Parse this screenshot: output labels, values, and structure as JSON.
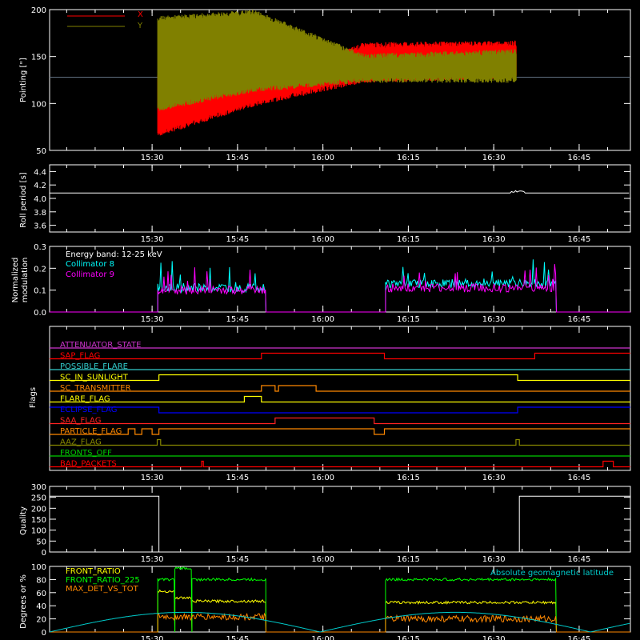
{
  "time_ticks": [
    "15:30",
    "15:45",
    "16:00",
    "16:15",
    "16:30",
    "16:45"
  ],
  "chart_data": [
    {
      "id": "pointing",
      "type": "line",
      "ylabel": "Pointing [\"]",
      "ylim": [
        50,
        200
      ],
      "yticks": [
        "50",
        "100",
        "150",
        "200"
      ],
      "series": [
        {
          "name": "X",
          "color": "#ff0000",
          "upper": [
            [
              15.52,
              130
            ],
            [
              15.8,
              118
            ],
            [
              16.12,
              162
            ],
            [
              16.58,
              164
            ]
          ],
          "lower": [
            [
              15.52,
              68
            ],
            [
              15.8,
              100
            ],
            [
              16.12,
              125
            ],
            [
              16.58,
              130
            ]
          ]
        },
        {
          "name": "Y",
          "color": "#808000",
          "upper": [
            [
              15.52,
              190
            ],
            [
              15.8,
              197
            ],
            [
              16.12,
              150
            ],
            [
              16.58,
              155
            ]
          ],
          "lower": [
            [
              15.52,
              95
            ],
            [
              15.8,
              115
            ],
            [
              16.12,
              125
            ],
            [
              16.58,
              125
            ]
          ]
        }
      ],
      "baseline": 128,
      "active_range": [
        "15:31",
        "16:34"
      ]
    },
    {
      "id": "roll",
      "type": "line",
      "ylabel": "Roll period [s]",
      "ylim": [
        3.5,
        4.5
      ],
      "yticks": [
        "3.6",
        "3.8",
        "4.0",
        "4.2",
        "4.4"
      ],
      "series": [
        {
          "color": "#ffffff",
          "value": 4.08
        }
      ]
    },
    {
      "id": "modulation",
      "type": "line",
      "ylabel": "Normalized modulation",
      "ylim": [
        0,
        0.3
      ],
      "yticks": [
        "0.0",
        "0.1",
        "0.2",
        "0.3"
      ],
      "annotation": "Energy band: 12-25 keV",
      "series": [
        {
          "name": "Collimator 8",
          "color": "#00ffff",
          "segments": [
            [
              "15:31",
              "15:50",
              0.11
            ],
            [
              "16:11",
              "16:41",
              0.13
            ]
          ]
        },
        {
          "name": "Collimator 9",
          "color": "#ff00ff",
          "segments": [
            [
              "15:31",
              "15:50",
              0.1
            ],
            [
              "16:11",
              "16:41",
              0.11
            ]
          ]
        }
      ]
    },
    {
      "id": "flags",
      "type": "line",
      "ylabel": "Flags",
      "series": [
        {
          "name": "ATTENUATOR_STATE",
          "color": "#cc33cc",
          "steps": [
            [
              15.2,
              0
            ],
            [
              16.9,
              0
            ]
          ]
        },
        {
          "name": "SAP_FLAG",
          "color": "#ff0000",
          "steps": [
            [
              15.2,
              0
            ],
            [
              15.82,
              1
            ],
            [
              16.18,
              0
            ],
            [
              16.62,
              1
            ],
            [
              16.9,
              1
            ]
          ]
        },
        {
          "name": "POSSIBLE_FLARE",
          "color": "#33cccc",
          "steps": [
            [
              15.2,
              0
            ],
            [
              16.9,
              0
            ]
          ]
        },
        {
          "name": "SC_IN_SUNLIGHT",
          "color": "#ffff00",
          "steps": [
            [
              15.2,
              0
            ],
            [
              15.52,
              1
            ],
            [
              16.57,
              0
            ],
            [
              16.9,
              0
            ]
          ]
        },
        {
          "name": "SC_TRANSMITTER",
          "color": "#ff8800",
          "steps": [
            [
              15.2,
              0
            ],
            [
              15.82,
              1
            ],
            [
              15.86,
              0
            ],
            [
              15.87,
              1
            ],
            [
              15.98,
              0
            ],
            [
              16.9,
              0
            ]
          ]
        },
        {
          "name": "FLARE_FLAG",
          "color": "#ffff00",
          "steps": [
            [
              15.2,
              0
            ],
            [
              15.77,
              1
            ],
            [
              15.82,
              0
            ],
            [
              16.9,
              0
            ]
          ]
        },
        {
          "name": "ECLIPSE_FLAG",
          "color": "#0000ff",
          "steps": [
            [
              15.2,
              1
            ],
            [
              15.52,
              0
            ],
            [
              16.57,
              1
            ],
            [
              16.9,
              1
            ]
          ]
        },
        {
          "name": "SAA_FLAG",
          "color": "#ff2222",
          "steps": [
            [
              15.2,
              0
            ],
            [
              15.86,
              1
            ],
            [
              16.15,
              0
            ],
            [
              16.9,
              0
            ]
          ]
        },
        {
          "name": "PARTICLE_FLAG",
          "color": "#ff8800",
          "steps": [
            [
              15.2,
              0
            ],
            [
              15.43,
              1
            ],
            [
              15.45,
              0
            ],
            [
              15.47,
              1
            ],
            [
              15.5,
              0
            ],
            [
              15.52,
              1
            ],
            [
              16.15,
              0
            ],
            [
              16.18,
              1
            ],
            [
              16.9,
              1
            ]
          ]
        },
        {
          "name": "AAZ_FLAG",
          "color": "#888800",
          "steps": [
            [
              15.2,
              0
            ],
            [
              15.515,
              1
            ],
            [
              15.525,
              0
            ],
            [
              16.565,
              1
            ],
            [
              16.575,
              0
            ],
            [
              16.9,
              0
            ]
          ]
        },
        {
          "name": "FRONTS_OFF",
          "color": "#00cc00",
          "steps": [
            [
              15.2,
              0
            ],
            [
              16.9,
              0
            ]
          ]
        },
        {
          "name": "BAD_PACKETS",
          "color": "#ff0000",
          "steps": [
            [
              15.2,
              0
            ],
            [
              15.645,
              1
            ],
            [
              15.65,
              0
            ],
            [
              16.82,
              1
            ],
            [
              16.85,
              0
            ],
            [
              16.9,
              0
            ]
          ]
        }
      ]
    },
    {
      "id": "quality",
      "type": "line",
      "ylabel": "Quality",
      "ylim": [
        0,
        300
      ],
      "yticks": [
        "0",
        "50",
        "100",
        "150",
        "200",
        "250",
        "300"
      ],
      "series": [
        {
          "color": "#ffffff",
          "steps": [
            [
              15.2,
              255
            ],
            [
              15.5,
              255
            ],
            [
              15.52,
              0
            ],
            [
              16.57,
              0
            ],
            [
              16.575,
              255
            ],
            [
              16.9,
              255
            ]
          ]
        }
      ]
    },
    {
      "id": "ratios",
      "type": "line",
      "ylabel": "Degrees or %",
      "ylim": [
        0,
        100
      ],
      "yticks": [
        "0",
        "20",
        "40",
        "60",
        "80",
        "100"
      ],
      "annotation": "Absolute geomagnetic latitude",
      "series": [
        {
          "name": "FRONT_RATIO",
          "color": "#ffff00",
          "segments": [
            [
              "15:31",
              "15:34",
              62
            ],
            [
              "15:34",
              "15:37",
              52
            ],
            [
              "15:37",
              "15:50",
              47
            ],
            [
              "16:11",
              "16:41",
              45
            ]
          ]
        },
        {
          "name": "FRONT_RATIO_225",
          "color": "#00ff00",
          "segments": [
            [
              "15:31",
              "15:34",
              80
            ],
            [
              "15:34",
              "15:37",
              97
            ],
            [
              "15:37",
              "15:50",
              80
            ],
            [
              "16:11",
              "16:41",
              80
            ]
          ]
        },
        {
          "name": "MAX_DET_VS_TOT",
          "color": "#ff8800",
          "segments": [
            [
              "15:31",
              "15:50",
              23
            ],
            [
              "16:11",
              "16:41",
              20
            ]
          ]
        },
        {
          "name": "Absolute geomagnetic latitude",
          "color": "#00cccc",
          "period_minutes": 47.5,
          "max": 30
        }
      ]
    }
  ]
}
